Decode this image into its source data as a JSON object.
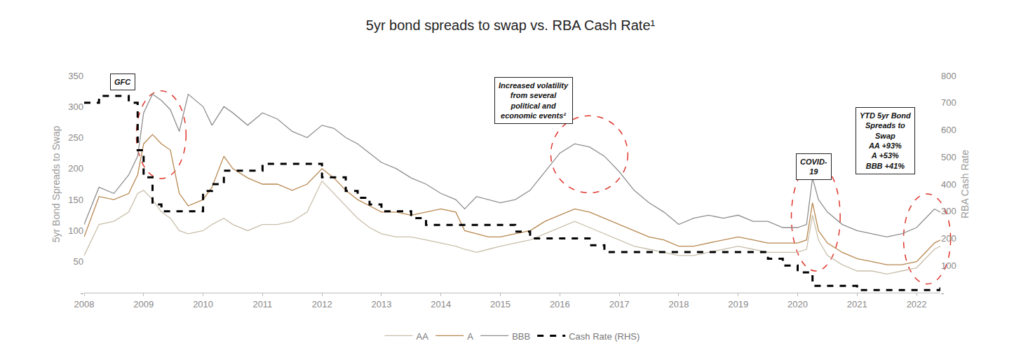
{
  "chart_data": {
    "type": "line",
    "title": "5yr bond spreads to swap vs. RBA Cash Rate¹",
    "y_label": "5yr Bond Spreads to Swap",
    "y2_label": "RBA Cash Rate",
    "grid": false,
    "legend": "bottom",
    "xlim": [
      2008,
      2022.4
    ],
    "xticks": [
      2008,
      2009,
      2010,
      2011,
      2012,
      2013,
      2014,
      2015,
      2016,
      2017,
      2018,
      2019,
      2020,
      2021,
      2022
    ],
    "ylim": [
      0,
      350
    ],
    "yticks": [
      {
        "value": 0,
        "label": "-"
      },
      50,
      100,
      150,
      200,
      250,
      300,
      350
    ],
    "y2lim": [
      0,
      800
    ],
    "y2ticks": [
      {
        "value": 0,
        "label": "-"
      },
      100,
      200,
      300,
      400,
      500,
      600,
      700,
      800
    ],
    "x": [
      2008.0,
      2008.25,
      2008.5,
      2008.75,
      2008.9,
      2009.0,
      2009.15,
      2009.3,
      2009.45,
      2009.6,
      2009.75,
      2010.0,
      2010.15,
      2010.35,
      2010.5,
      2010.75,
      2011.0,
      2011.25,
      2011.5,
      2011.75,
      2012.0,
      2012.2,
      2012.4,
      2012.6,
      2012.8,
      2013.0,
      2013.25,
      2013.5,
      2013.75,
      2014.0,
      2014.25,
      2014.4,
      2014.6,
      2014.8,
      2015.0,
      2015.25,
      2015.5,
      2015.75,
      2016.0,
      2016.25,
      2016.5,
      2016.75,
      2017.0,
      2017.25,
      2017.5,
      2017.75,
      2018.0,
      2018.25,
      2018.5,
      2018.75,
      2019.0,
      2019.25,
      2019.5,
      2019.75,
      2020.0,
      2020.15,
      2020.25,
      2020.35,
      2020.5,
      2020.75,
      2021.0,
      2021.25,
      2021.5,
      2021.75,
      2022.0,
      2022.15,
      2022.3,
      2022.4
    ],
    "series": [
      {
        "name": "AA",
        "color": "#c9bfaa",
        "type": "line",
        "line_style": "solid",
        "values": [
          60,
          110,
          115,
          130,
          160,
          165,
          150,
          130,
          120,
          100,
          95,
          100,
          110,
          120,
          110,
          100,
          110,
          110,
          115,
          130,
          180,
          160,
          140,
          120,
          105,
          95,
          90,
          90,
          85,
          80,
          75,
          70,
          65,
          70,
          75,
          80,
          85,
          95,
          105,
          115,
          105,
          95,
          85,
          75,
          70,
          65,
          60,
          60,
          65,
          70,
          75,
          70,
          65,
          65,
          65,
          70,
          125,
          85,
          60,
          45,
          35,
          35,
          30,
          35,
          40,
          55,
          70,
          75
        ]
      },
      {
        "name": "A",
        "color": "#b8874f",
        "type": "line",
        "line_style": "solid",
        "values": [
          90,
          155,
          150,
          160,
          190,
          240,
          255,
          240,
          230,
          160,
          140,
          150,
          170,
          220,
          200,
          185,
          175,
          175,
          165,
          175,
          200,
          185,
          165,
          150,
          140,
          130,
          130,
          125,
          130,
          135,
          130,
          100,
          95,
          90,
          90,
          95,
          100,
          115,
          125,
          135,
          130,
          120,
          110,
          100,
          90,
          85,
          75,
          75,
          80,
          85,
          90,
          85,
          80,
          80,
          80,
          85,
          145,
          100,
          80,
          65,
          55,
          50,
          45,
          45,
          50,
          65,
          80,
          85
        ]
      },
      {
        "name": "BBB",
        "color": "#8e8e8e",
        "type": "line",
        "line_style": "solid",
        "values": [
          110,
          170,
          160,
          190,
          220,
          290,
          320,
          310,
          295,
          260,
          320,
          300,
          270,
          300,
          290,
          270,
          290,
          280,
          260,
          250,
          270,
          265,
          250,
          240,
          225,
          210,
          200,
          185,
          175,
          160,
          150,
          135,
          155,
          150,
          145,
          150,
          165,
          195,
          225,
          240,
          235,
          220,
          195,
          165,
          145,
          130,
          110,
          120,
          125,
          120,
          125,
          115,
          115,
          105,
          105,
          110,
          185,
          150,
          130,
          110,
          100,
          95,
          90,
          95,
          105,
          120,
          135,
          130
        ]
      },
      {
        "name": "Cash Rate (RHS)",
        "color": "#000000",
        "type": "step",
        "line_style": "dash",
        "axis": "y2",
        "values": [
          700,
          725,
          725,
          700,
          525,
          425,
          325,
          300,
          300,
          300,
          300,
          375,
          400,
          450,
          450,
          450,
          475,
          475,
          475,
          475,
          425,
          425,
          375,
          350,
          325,
          300,
          300,
          275,
          250,
          250,
          250,
          250,
          250,
          250,
          250,
          225,
          200,
          200,
          200,
          200,
          175,
          150,
          150,
          150,
          150,
          150,
          150,
          150,
          150,
          150,
          150,
          150,
          125,
          100,
          75,
          75,
          25,
          25,
          25,
          25,
          10,
          10,
          10,
          10,
          10,
          10,
          10,
          35
        ]
      }
    ],
    "annotations": [
      {
        "lines": [
          "GFC"
        ]
      },
      {
        "lines": [
          "Increased volatility",
          "from several",
          "political and",
          "economic events²"
        ]
      },
      {
        "lines": [
          "COVID-",
          "19"
        ]
      },
      {
        "lines": [
          "YTD 5yr Bond",
          "Spreads to",
          "Swap",
          "AA +93%",
          "A +53%",
          "BBB +41%"
        ]
      }
    ]
  }
}
